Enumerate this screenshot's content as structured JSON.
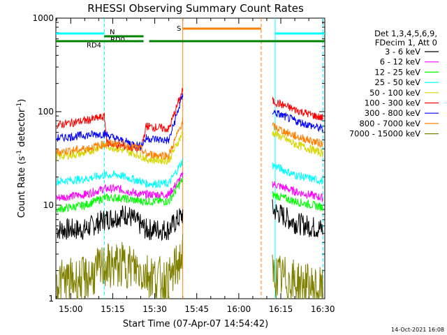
{
  "chart_data": {
    "type": "line",
    "title": "RHESSI Observing Summary Count Rates",
    "xlabel": "Start Time (07-Apr-07 14:54:42)",
    "ylabel_main": "Count Rate (s",
    "ylabel_sup1": "-1",
    "ylabel_mid": " detector",
    "ylabel_sup2": "-1",
    "ylabel_end": ")",
    "y_scale": "log",
    "xlim": [
      "14:54:42",
      "16:30:42"
    ],
    "ylim": [
      1,
      1000
    ],
    "x_ticks": [
      "15:00",
      "15:15",
      "15:30",
      "15:45",
      "16:00",
      "16:15",
      "16:30"
    ],
    "y_ticks": [
      {
        "value": 1,
        "label": "1"
      },
      {
        "value": 10,
        "label": "10"
      },
      {
        "value": 100,
        "label": "100"
      },
      {
        "value": 1000,
        "label": "1000"
      }
    ],
    "legend_placement": "right",
    "legend_header": [
      "Det 1,3,4,5,6,9,",
      "FDecim 1, Att 0"
    ],
    "series": [
      {
        "name": "3 - 6 keV",
        "color": "#000000",
        "x": [
          "14:55",
          "15:05",
          "15:12",
          "15:20",
          "15:27",
          "15:35",
          "15:40",
          "16:12",
          "16:20",
          "16:30"
        ],
        "values": [
          5.5,
          5.5,
          7,
          8,
          5.5,
          5.5,
          8,
          9,
          6.5,
          5.5
        ]
      },
      {
        "name": "6 - 12 keV",
        "color": "#ff00ff",
        "x": [
          "14:55",
          "15:05",
          "15:12",
          "15:17",
          "15:25",
          "15:27",
          "15:35",
          "15:40",
          "16:12",
          "16:20",
          "16:30"
        ],
        "values": [
          12,
          13,
          15,
          15,
          13,
          13,
          13,
          21,
          17,
          14,
          12
        ]
      },
      {
        "name": "12 - 25 keV",
        "color": "#00ff00",
        "x": [
          "14:55",
          "15:05",
          "15:12",
          "15:17",
          "15:25",
          "15:27",
          "15:35",
          "15:40",
          "16:12",
          "16:20",
          "16:30"
        ],
        "values": [
          9,
          10,
          12,
          12,
          11,
          11,
          11,
          19,
          13,
          11,
          9.5
        ]
      },
      {
        "name": "25 - 50 keV",
        "color": "#00ffff",
        "x": [
          "14:55",
          "15:05",
          "15:12",
          "15:17",
          "15:25",
          "15:27",
          "15:35",
          "15:40",
          "16:12",
          "16:20",
          "16:30"
        ],
        "values": [
          18,
          19,
          21,
          21,
          18,
          17,
          17,
          30,
          27,
          21,
          18
        ]
      },
      {
        "name": "50 - 100 keV",
        "color": "#d6d600",
        "x": [
          "14:55",
          "15:05",
          "15:12",
          "15:17",
          "15:25",
          "15:27",
          "15:35",
          "15:40",
          "16:12",
          "16:20",
          "16:30"
        ],
        "values": [
          33,
          36,
          44,
          40,
          34,
          31,
          30,
          60,
          60,
          45,
          36
        ]
      },
      {
        "name": "100 - 300 keV",
        "color": "#ff0000",
        "x": [
          "14:55",
          "15:05",
          "15:12",
          "15:13",
          "15:25",
          "15:27",
          "15:35",
          "15:40",
          "16:12",
          "16:20",
          "16:30"
        ],
        "values": [
          72,
          80,
          88,
          46,
          40,
          70,
          65,
          170,
          130,
          105,
          85
        ]
      },
      {
        "name": "300 - 800 keV",
        "color": "#0000ff",
        "x": [
          "14:55",
          "15:05",
          "15:12",
          "15:17",
          "15:25",
          "15:27",
          "15:35",
          "15:40",
          "16:12",
          "16:20",
          "16:30"
        ],
        "values": [
          52,
          56,
          58,
          50,
          43,
          52,
          49,
          150,
          100,
          80,
          65
        ]
      },
      {
        "name": "800 - 7000 keV",
        "color": "#ff8000",
        "x": [
          "14:55",
          "15:05",
          "15:12",
          "15:17",
          "15:25",
          "15:27",
          "15:35",
          "15:40",
          "16:12",
          "16:20",
          "16:30"
        ],
        "values": [
          37,
          40,
          45,
          46,
          40,
          35,
          34,
          80,
          70,
          55,
          45
        ]
      },
      {
        "name": "7000 - 15000 keV",
        "color": "#808000",
        "x": [
          "14:55",
          "15:05",
          "15:12",
          "15:20",
          "15:28",
          "15:35",
          "15:40",
          "16:12",
          "16:20",
          "16:30"
        ],
        "values": [
          1.5,
          1.6,
          2.2,
          2.3,
          1.8,
          1.5,
          3,
          1.8,
          1.5,
          1.2
        ]
      }
    ],
    "flag_bars": [
      {
        "label": "N",
        "color": "#00ffff",
        "segments": [
          [
            "14:54:42",
            "15:12"
          ],
          [
            "16:13",
            "16:30:42"
          ]
        ]
      },
      {
        "label": "RD0",
        "color": "#008000",
        "segments": [
          [
            "15:12",
            "15:26"
          ]
        ]
      },
      {
        "label": "RD4",
        "color": "#008000",
        "segments": [
          [
            "14:54:42",
            "15:26"
          ],
          [
            "15:28",
            "16:30:42"
          ]
        ]
      },
      {
        "label": "S",
        "color": "#ff8000",
        "segments": [
          [
            "15:40",
            "16:08"
          ]
        ]
      }
    ],
    "vertical_lines": [
      {
        "time": "15:12",
        "color": "#00ffff",
        "style": "dashed"
      },
      {
        "time": "16:13",
        "color": "#00ffff",
        "style": "solid"
      },
      {
        "time": "16:30",
        "color": "#00ffff",
        "style": "dashed"
      },
      {
        "time": "15:40",
        "color": "#ff8000",
        "style": "solid"
      },
      {
        "time": "16:08",
        "color": "#ff8000",
        "style": "dashed"
      }
    ]
  },
  "footer": {
    "timestamp": "14-Oct-2021 16:08"
  }
}
